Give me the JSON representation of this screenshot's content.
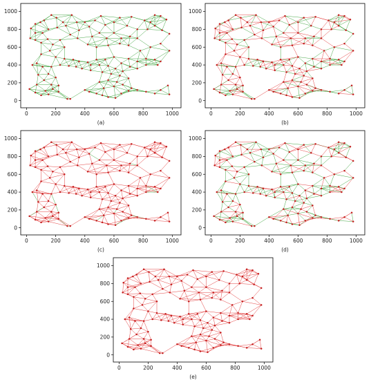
{
  "figure": {
    "panel_order": [
      "a",
      "b",
      "c",
      "d",
      "e"
    ]
  },
  "colors": {
    "green": "#2e9b2e",
    "red": "#e02a2a",
    "node": "#c41e1e",
    "axis": "#000000"
  },
  "chart_data": [
    {
      "type": "scatter",
      "id": "a",
      "caption": "(a)",
      "edge_color": "#2e9b2e",
      "edge_mix": {
        "green_share": 1.0,
        "red_share": 0.0
      },
      "xlim": [
        -40,
        1060
      ],
      "ylim": [
        -80,
        1090
      ],
      "xticks": [
        "0",
        "200",
        "400",
        "600",
        "800",
        "1000"
      ],
      "yticks": [
        "0",
        "200",
        "400",
        "600",
        "800",
        "1000"
      ],
      "grid": false
    },
    {
      "type": "scatter",
      "id": "b",
      "caption": "(b)",
      "edge_color": "#e02a2a",
      "edge_mix": {
        "green_share": 0.45,
        "red_share": 0.55
      },
      "xlim": [
        -40,
        1060
      ],
      "ylim": [
        -80,
        1090
      ],
      "xticks": [
        "0",
        "200",
        "400",
        "600",
        "800",
        "1000"
      ],
      "yticks": [
        "0",
        "200",
        "400",
        "600",
        "800",
        "1000"
      ],
      "grid": false
    },
    {
      "type": "scatter",
      "id": "c",
      "caption": "(c)",
      "edge_color": "#e02a2a",
      "edge_mix": {
        "green_share": 0.04,
        "red_share": 0.96
      },
      "xlim": [
        -40,
        1060
      ],
      "ylim": [
        -80,
        1090
      ],
      "xticks": [
        "0",
        "200",
        "400",
        "600",
        "800",
        "1000"
      ],
      "yticks": [
        "0",
        "200",
        "400",
        "600",
        "800",
        "1000"
      ],
      "grid": false
    },
    {
      "type": "scatter",
      "id": "d",
      "caption": "(d)",
      "edge_color": "#2e9b2e",
      "edge_mix": {
        "green_share": 0.6,
        "red_share": 0.4
      },
      "xlim": [
        -40,
        1060
      ],
      "ylim": [
        -80,
        1090
      ],
      "xticks": [
        "0",
        "200",
        "400",
        "600",
        "800",
        "1000"
      ],
      "yticks": [
        "0",
        "200",
        "400",
        "600",
        "800",
        "1000"
      ],
      "grid": false
    },
    {
      "type": "scatter",
      "id": "e",
      "caption": "(e)",
      "edge_color": "#e02a2a",
      "edge_mix": {
        "green_share": 0.0,
        "red_share": 1.0
      },
      "xlim": [
        -40,
        1060
      ],
      "ylim": [
        -80,
        1090
      ],
      "xticks": [
        "0",
        "200",
        "400",
        "600",
        "800",
        "1000"
      ],
      "yticks": [
        "0",
        "200",
        "400",
        "600",
        "800",
        "1000"
      ],
      "grid": false
    }
  ]
}
